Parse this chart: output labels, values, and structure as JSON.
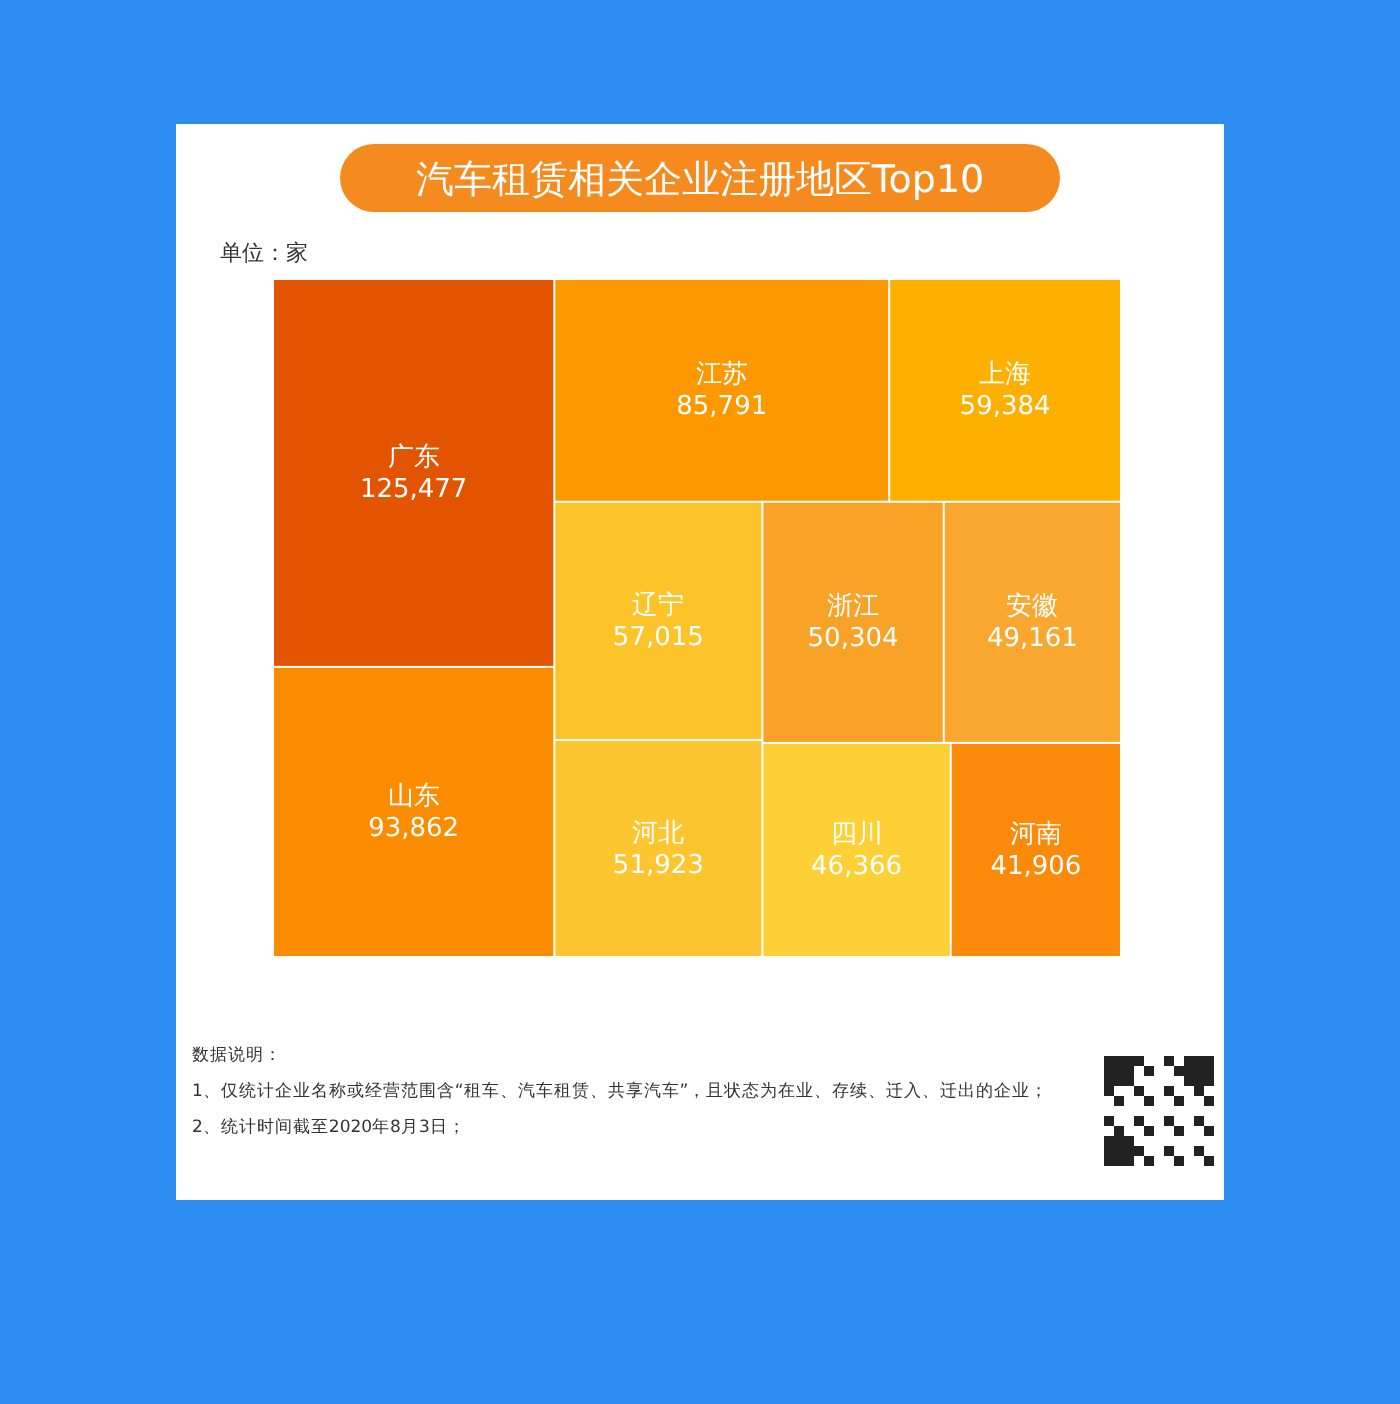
{
  "chart_data": {
    "type": "other",
    "title": "汽车租赁相关企业注册地区Top10",
    "subtitle": "单位：家",
    "categories": [
      "广东",
      "山东",
      "江苏",
      "上海",
      "辽宁",
      "河北",
      "浙江",
      "安徽",
      "四川",
      "河南"
    ],
    "values": [
      125477,
      93862,
      85791,
      59384,
      57015,
      51923,
      50304,
      49161,
      46366,
      41906
    ],
    "colors": [
      "#e25400",
      "#fb8c00",
      "#fd9800",
      "#fdb000",
      "#fdc42a",
      "#fdc530",
      "#f9a228",
      "#f9a72f",
      "#fdd035",
      "#fb8a0a"
    ],
    "value_labels": [
      "125,477",
      "93,862",
      "85,791",
      "59,384",
      "57,015",
      "51,923",
      "50,304",
      "49,161",
      "46,366",
      "41,906"
    ],
    "annotations": [
      "数据说明：",
      "1、仅统计企业名称或经营范围含“租车、汽车租赁、共享汽车”，且状态为在业、存续、迁入、迁出的企业；",
      "2、统计时间截至2020年8月3日；"
    ]
  }
}
